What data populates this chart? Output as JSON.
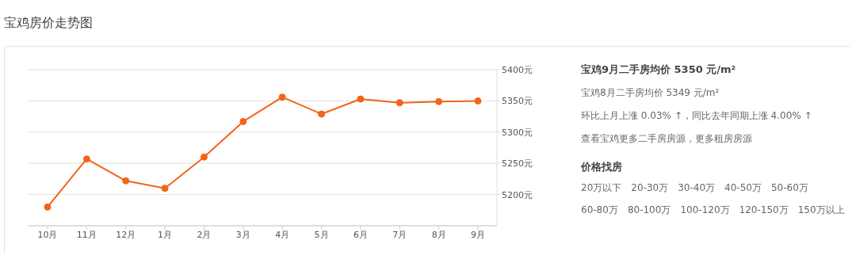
{
  "chart_data": [
    {
      "type": "line",
      "title": "宝鸡房价走势图",
      "categories": [
        "10月",
        "11月",
        "12月",
        "1月",
        "2月",
        "3月",
        "4月",
        "5月",
        "6月",
        "7月",
        "8月",
        "9月"
      ],
      "series": [
        {
          "color": "#f26419",
          "values": [
            5180,
            5257,
            5222,
            5210,
            5260,
            5317,
            5356,
            5329,
            5353,
            5347,
            5349,
            5350
          ]
        }
      ],
      "ylim": [
        5150,
        5400
      ],
      "yticks": [
        {
          "value": 5200,
          "label": "5200元"
        },
        {
          "value": 5250,
          "label": "5250元"
        },
        {
          "value": 5300,
          "label": "5300元"
        },
        {
          "value": 5350,
          "label": "5350元"
        },
        {
          "value": 5400,
          "label": "5400元"
        }
      ],
      "grid": "y",
      "marker": "circle",
      "line_style": "solid"
    },
    {
      "type": "other",
      "title": "宝鸡9月二手房均价 5350 元/m²",
      "subtitle": "价格找房",
      "annotations": [
        "宝鸡8月二手房均价 5349 元/m²",
        "环比上月上涨 0.03% ↑，同比去年同期上涨 4.00% ↑",
        "查看宝鸡更多二手房房源，更多租房房源",
        "20万以下",
        "20-30万",
        "30-40万",
        "40-50万",
        "50-60万",
        "60-80万",
        "80-100万",
        "100-120万",
        "120-150万",
        "150万以上"
      ]
    }
  ]
}
